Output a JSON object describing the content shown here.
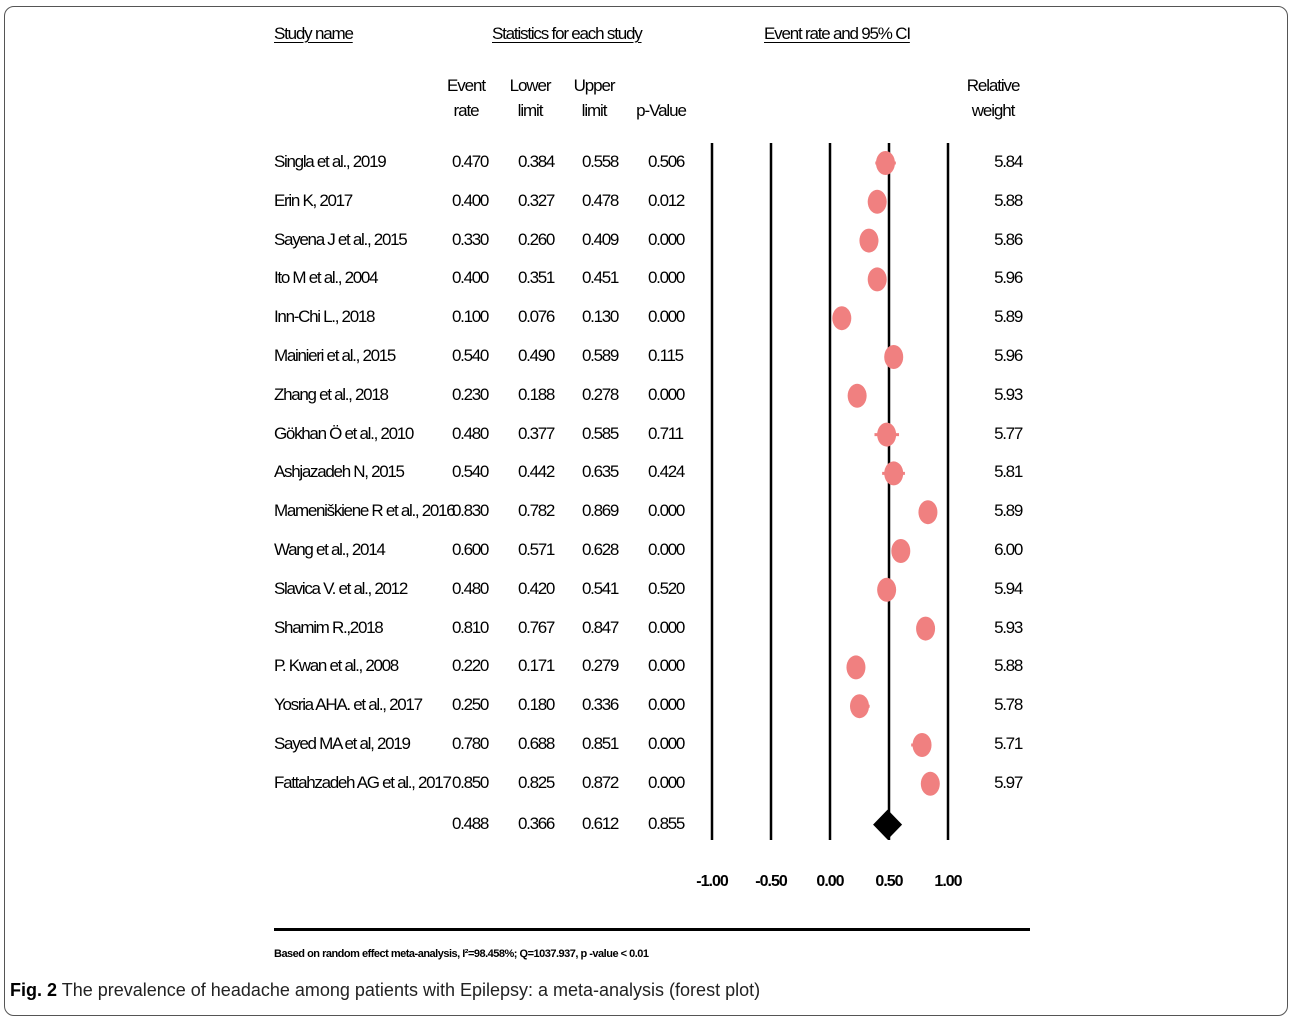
{
  "headers": {
    "study_name": "Study name",
    "statistics": "Statistics for each study",
    "event_rate_ci": "Event rate and 95% CI"
  },
  "columns": {
    "event_rate": [
      "Event",
      "rate"
    ],
    "lower_limit": [
      "Lower",
      "limit"
    ],
    "upper_limit": [
      "Upper",
      "limit"
    ],
    "p_value": [
      "p-Value"
    ],
    "relative_weight": [
      "Relative",
      "weight"
    ]
  },
  "footnote": "Based on random effect meta-analysis, I²=98.458%; Q=1037.937, p -value < 0.01",
  "caption": {
    "label": "Fig. 2",
    "text": "The prevalence of headache among patients with Epilepsy: a meta-analysis (forest plot)"
  },
  "colors": {
    "study_marker": "#f08080",
    "summary_marker": "#000000",
    "axis_lines": "#000000"
  },
  "chart_data": {
    "type": "forest",
    "x_ticks": [
      "-1.00",
      "-0.50",
      "0.00",
      "0.50",
      "1.00"
    ],
    "xlim": [
      -1,
      1
    ],
    "reference_line": 0.5,
    "studies": [
      {
        "name": "Singla et al., 2019",
        "event_rate": "0.470",
        "lower": "0.384",
        "upper": "0.558",
        "p": "0.506",
        "weight": "5.84"
      },
      {
        "name": "Erin K, 2017",
        "event_rate": "0.400",
        "lower": "0.327",
        "upper": "0.478",
        "p": "0.012",
        "weight": "5.88"
      },
      {
        "name": "Sayena J et al., 2015",
        "event_rate": "0.330",
        "lower": "0.260",
        "upper": "0.409",
        "p": "0.000",
        "weight": "5.86"
      },
      {
        "name": "Ito M et al., 2004",
        "event_rate": "0.400",
        "lower": "0.351",
        "upper": "0.451",
        "p": "0.000",
        "weight": "5.96"
      },
      {
        "name": "Inn-Chi L., 2018",
        "event_rate": "0.100",
        "lower": "0.076",
        "upper": "0.130",
        "p": "0.000",
        "weight": "5.89"
      },
      {
        "name": "Mainieri et al., 2015",
        "event_rate": "0.540",
        "lower": "0.490",
        "upper": "0.589",
        "p": "0.115",
        "weight": "5.96"
      },
      {
        "name": "Zhang et al., 2018",
        "event_rate": "0.230",
        "lower": "0.188",
        "upper": "0.278",
        "p": "0.000",
        "weight": "5.93"
      },
      {
        "name": "Gökhan Ö et al., 2010",
        "event_rate": "0.480",
        "lower": "0.377",
        "upper": "0.585",
        "p": "0.711",
        "weight": "5.77"
      },
      {
        "name": "Ashjazadeh N, 2015",
        "event_rate": "0.540",
        "lower": "0.442",
        "upper": "0.635",
        "p": "0.424",
        "weight": "5.81"
      },
      {
        "name": "Mameniškiene R et al., 2016",
        "event_rate": "0.830",
        "lower": "0.782",
        "upper": "0.869",
        "p": "0.000",
        "weight": "5.89"
      },
      {
        "name": "Wang et al., 2014",
        "event_rate": "0.600",
        "lower": "0.571",
        "upper": "0.628",
        "p": "0.000",
        "weight": "6.00"
      },
      {
        "name": "Slavica V. et al., 2012",
        "event_rate": "0.480",
        "lower": "0.420",
        "upper": "0.541",
        "p": "0.520",
        "weight": "5.94"
      },
      {
        "name": "Shamim R.,2018",
        "event_rate": "0.810",
        "lower": "0.767",
        "upper": "0.847",
        "p": "0.000",
        "weight": "5.93"
      },
      {
        "name": "P. Kwan et al., 2008",
        "event_rate": "0.220",
        "lower": "0.171",
        "upper": "0.279",
        "p": "0.000",
        "weight": "5.88"
      },
      {
        "name": "Yosria AHA. et al., 2017",
        "event_rate": "0.250",
        "lower": "0.180",
        "upper": "0.336",
        "p": "0.000",
        "weight": "5.78"
      },
      {
        "name": "Sayed MA et al, 2019",
        "event_rate": "0.780",
        "lower": "0.688",
        "upper": "0.851",
        "p": "0.000",
        "weight": "5.71"
      },
      {
        "name": "Fattahzadeh AG et al., 2017",
        "event_rate": "0.850",
        "lower": "0.825",
        "upper": "0.872",
        "p": "0.000",
        "weight": "5.97"
      }
    ],
    "summary": {
      "event_rate": "0.488",
      "lower": "0.366",
      "upper": "0.612",
      "p": "0.855"
    }
  }
}
